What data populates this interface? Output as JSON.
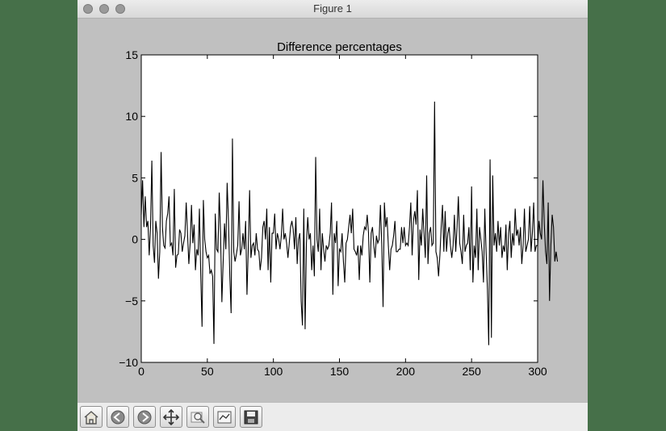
{
  "window": {
    "title": "Figure 1"
  },
  "toolbar": {
    "buttons": [
      {
        "name": "home-icon"
      },
      {
        "name": "back-arrow-icon"
      },
      {
        "name": "forward-arrow-icon"
      },
      {
        "name": "pan-icon"
      },
      {
        "name": "zoom-icon"
      },
      {
        "name": "subplots-icon"
      },
      {
        "name": "save-icon"
      }
    ]
  },
  "chart_data": {
    "type": "line",
    "title": "Difference percentages",
    "xlabel": "",
    "ylabel": "",
    "xlim": [
      0,
      300
    ],
    "ylim": [
      -10,
      15
    ],
    "xticks": [
      0,
      50,
      100,
      150,
      200,
      250,
      300
    ],
    "yticks": [
      -10,
      -5,
      0,
      5,
      10,
      15
    ],
    "grid": false,
    "line_color": "#000000",
    "series": [
      {
        "values": [
          2.0,
          4.8,
          1.0,
          3.5,
          1.0,
          1.5,
          -1.3,
          1.0,
          6.4,
          -0.5,
          -1.9,
          1.5,
          0.5,
          -3.2,
          -1.0,
          7.1,
          1.0,
          -0.5,
          -0.7,
          1.5,
          2.1,
          3.5,
          -0.5,
          -0.3,
          -1.3,
          4.1,
          -2.3,
          -1.3,
          -1.2,
          0.8,
          0.5,
          -1.0,
          -0.3,
          0.3,
          3.0,
          0.5,
          -2.0,
          -0.3,
          2.8,
          -0.3,
          1.2,
          -2.5,
          -0.8,
          -1.3,
          2.5,
          -2.8,
          -7.1,
          3.2,
          0.0,
          -1.0,
          -1.5,
          -1.3,
          -2.8,
          -2.5,
          -3.0,
          -8.5,
          2.1,
          -0.8,
          -1.0,
          3.8,
          0.5,
          -5.1,
          -1.8,
          1.3,
          -0.8,
          4.6,
          1.5,
          -3.0,
          -6.0,
          8.2,
          -1.0,
          -1.8,
          -1.2,
          -0.5,
          3.1,
          -1.3,
          -0.8,
          0.5,
          -0.8,
          1.5,
          -4.5,
          -0.7,
          4.0,
          -1.5,
          -0.5,
          -0.3,
          -1.3,
          0.5,
          -0.8,
          -1.0,
          -2.5,
          -1.5,
          1.0,
          1.5,
          0.0,
          2.5,
          -2.5,
          1.0,
          -3.5,
          0.5,
          0.5,
          2.1,
          -0.8,
          0.5,
          0.0,
          -0.8,
          0.3,
          2.5,
          0.0,
          0.5,
          -0.3,
          -1.5,
          -0.3,
          1.0,
          1.5,
          0.8,
          -0.8,
          1.8,
          -2.0,
          0.0,
          0.5,
          -5.0,
          -7.0,
          2.5,
          -7.3,
          -0.3,
          1.8,
          0.0,
          0.5,
          -2.5,
          -0.5,
          -3.0,
          6.7,
          0.0,
          -1.0,
          2.5,
          -2.5,
          0.5,
          -0.8,
          -1.8,
          -0.5,
          -0.8,
          -0.5,
          0.5,
          3.0,
          -4.5,
          0.5,
          -0.3,
          1.5,
          -3.8,
          -0.8,
          -1.0,
          0.5,
          -1.8,
          -3.5,
          -0.3,
          0.0,
          1.0,
          2.0,
          0.5,
          2.5,
          -0.8,
          -1.0,
          -1.3,
          -0.5,
          -3.3,
          -0.5,
          -1.3,
          0.3,
          1.0,
          0.8,
          2.0,
          0.5,
          -3.5,
          0.5,
          1.0,
          -0.5,
          -1.5,
          0.3,
          -0.3,
          0.0,
          2.8,
          -0.3,
          -5.5,
          3.0,
          1.0,
          1.8,
          -0.5,
          -2.5,
          -0.8,
          -0.5,
          0.3,
          1.5,
          -1.0,
          -1.0,
          -0.8,
          -0.8,
          1.0,
          -0.3,
          1.0,
          -0.5,
          -0.3,
          -0.5,
          1.0,
          3.0,
          -1.3,
          1.5,
          2.3,
          1.2,
          4.0,
          -3.3,
          0.8,
          -0.5,
          2.5,
          0.5,
          -1.5,
          5.2,
          -2.0,
          0.5,
          1.0,
          -0.5,
          -0.3,
          11.2,
          -1.0,
          -1.5,
          -3.0,
          -1.3,
          1.0,
          2.8,
          -1.0,
          2.3,
          -1.0,
          0.5,
          1.0,
          -0.5,
          -1.5,
          -0.5,
          2.0,
          -1.0,
          1.0,
          3.5,
          -0.3,
          -1.0,
          -2.0,
          2.0,
          -1.0,
          -0.5,
          -0.3,
          1.0,
          -2.5,
          4.3,
          -3.5,
          -0.5,
          -1.5,
          2.5,
          -2.5,
          1.0,
          0.0,
          -1.0,
          -3.5,
          2.5,
          -1.0,
          -4.1,
          -8.6,
          6.5,
          -8.0,
          5.2,
          -0.5,
          0.5,
          -1.0,
          1.5,
          -0.5,
          1.0,
          -1.5,
          -0.5,
          -1.0,
          1.2,
          -2.5,
          0.5,
          1.5,
          -1.5,
          0.5,
          -0.5,
          2.5,
          0.3,
          0.8,
          -0.5,
          1.0,
          -2.0,
          -0.5,
          2.5,
          -1.0,
          -0.5,
          0.0,
          2.7,
          -1.0,
          0.5,
          3.0,
          -1.0,
          -0.5,
          -0.5,
          1.5,
          0.5,
          0.0,
          4.8,
          1.3,
          -1.0,
          -2.0,
          3.0,
          -5.0,
          -0.5,
          2.0,
          1.0,
          -1.8,
          -1.0,
          -1.8
        ],
        "color": "#000000"
      }
    ]
  }
}
